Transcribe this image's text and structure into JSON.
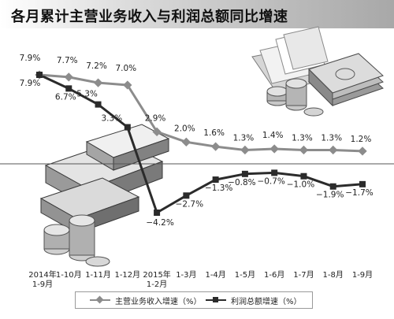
{
  "title": "各月累计主营业务收入与利润总额同比增速",
  "chart_data": {
    "type": "line",
    "categories": [
      "2014年\n1-9月",
      "1-10月",
      "1-11月",
      "1-12月",
      "2015年\n1-2月",
      "1-3月",
      "1-4月",
      "1-5月",
      "1-6月",
      "1-7月",
      "1-8月",
      "1-9月"
    ],
    "series": [
      {
        "name": "主营业务收入增速（%）",
        "values": [
          7.9,
          7.7,
          7.2,
          7.0,
          2.9,
          2.0,
          1.6,
          1.3,
          1.4,
          1.3,
          1.3,
          1.2
        ],
        "labels": [
          "7.9%",
          "7.7%",
          "7.2%",
          "7.0%",
          "2.9%",
          "2.0%",
          "1.6%",
          "1.3%",
          "1.4%",
          "1.3%",
          "1.3%",
          "1.2%"
        ],
        "color": "#8c8c8c",
        "marker": "diamond"
      },
      {
        "name": "利润总额增速（%）",
        "values": [
          7.9,
          6.7,
          5.3,
          3.3,
          -4.2,
          -2.7,
          -1.3,
          -0.8,
          -0.7,
          -1.0,
          -1.9,
          -1.7
        ],
        "labels": [
          "7.9%",
          "6.7%",
          "5.3%",
          "3.3%",
          "−4.2%",
          "−2.7%",
          "−1.3%",
          "−0.8%",
          "−0.7%",
          "−1.0%",
          "−1.9%",
          "−1.7%"
        ],
        "color": "#2b2b2b",
        "marker": "square"
      }
    ],
    "ylim": [
      -5,
      9
    ],
    "grid": false,
    "zero_line": true,
    "legend_position": "bottom"
  },
  "legend": {
    "item1": "主营业务收入增速（%）",
    "item2": "利润总额增速（%）"
  },
  "decorations": [
    "file-folder-icon",
    "banknote-stack-icon",
    "coin-stack-icon",
    "gold-bar-stack-icon"
  ]
}
